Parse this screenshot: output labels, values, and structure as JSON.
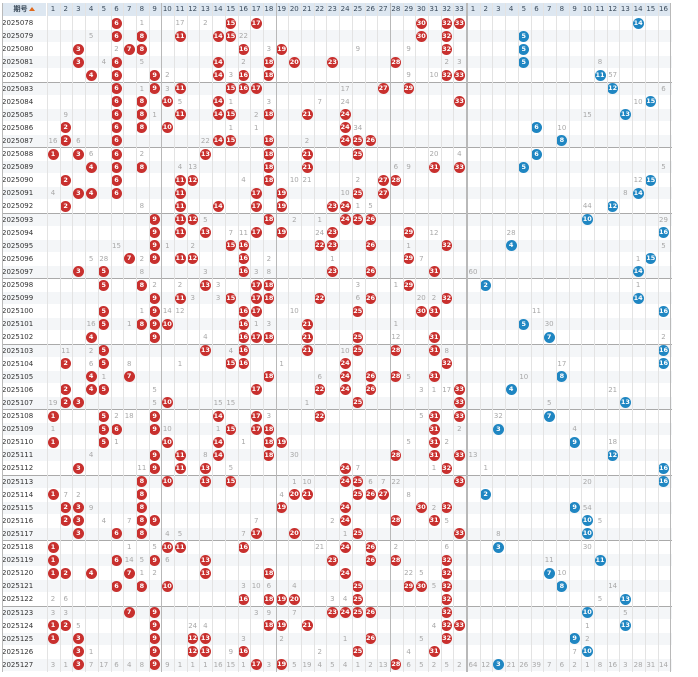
{
  "header": {
    "issue_label": "期号",
    "sort_icon": "sort-icon"
  },
  "red_columns": [
    "1",
    "2",
    "3",
    "4",
    "5",
    "6",
    "7",
    "8",
    "9",
    "10",
    "11",
    "12",
    "13",
    "14",
    "15",
    "16",
    "17",
    "18",
    "19",
    "20",
    "21",
    "22",
    "23",
    "24",
    "25",
    "26",
    "27",
    "28",
    "29",
    "30",
    "31",
    "32",
    "33"
  ],
  "blue_columns": [
    "1",
    "2",
    "3",
    "4",
    "5",
    "6",
    "7",
    "8",
    "9",
    "10",
    "11",
    "12",
    "13",
    "14",
    "15",
    "16"
  ],
  "colors": {
    "red_ball": "#c8302e",
    "blue_ball": "#1f86c2",
    "header_bg": "#dde7f1"
  },
  "rows": [
    {
      "issue": "2025078",
      "red": [
        6,
        15,
        17,
        30,
        32,
        33
      ],
      "blue": 14,
      "miss": {
        "8": "1",
        "11": "17",
        "13": "2"
      }
    },
    {
      "issue": "2025079",
      "red": [
        6,
        8,
        11,
        14,
        15,
        30,
        32
      ],
      "blue": 5,
      "miss": {
        "4": "5",
        "16": "22"
      }
    },
    {
      "issue": "2025080",
      "red": [
        3,
        7,
        8,
        16,
        19,
        32
      ],
      "blue": 5,
      "miss": {
        "6": "2",
        "18": "3",
        "25": "9",
        "29": "9"
      }
    },
    {
      "issue": "2025081",
      "red": [
        3,
        6,
        14,
        18,
        20,
        23,
        28
      ],
      "blue": 5,
      "miss": {
        "5": "4",
        "8": "5",
        "16": "2",
        "32": "2",
        "33": "3"
      },
      "bmiss": {
        "11": "8"
      }
    },
    {
      "issue": "2025082",
      "red": [
        4,
        6,
        9,
        14,
        16,
        18,
        32,
        33
      ],
      "blue": 11,
      "miss": {
        "10": "2",
        "15": "3",
        "29": "9",
        "31": "10"
      },
      "bmiss": {
        "12": "57"
      }
    },
    {
      "issue": "2025083",
      "red": [
        6,
        9,
        11,
        15,
        16,
        17,
        27,
        29
      ],
      "blue": 12,
      "miss": {
        "8": "1",
        "10": "3",
        "24": "17"
      },
      "bmiss": {
        "16": "6"
      },
      "sep": true
    },
    {
      "issue": "2025084",
      "red": [
        6,
        8,
        10,
        14,
        33
      ],
      "blue": 15,
      "miss": {
        "11": "5",
        "15": "1",
        "18": "3",
        "22": "7",
        "24": "24"
      },
      "bmiss": {
        "14": "10"
      }
    },
    {
      "issue": "2025085",
      "red": [
        6,
        8,
        11,
        14,
        15,
        18,
        21,
        24
      ],
      "blue": 13,
      "miss": {
        "2": "9",
        "9": "1",
        "17": "2"
      },
      "bmiss": {
        "10": "15"
      }
    },
    {
      "issue": "2025086",
      "red": [
        2,
        6,
        8,
        10,
        24
      ],
      "blue": 6,
      "miss": {
        "15": "1",
        "17": "1",
        "25": "34"
      },
      "bmiss": {
        "8": "10"
      }
    },
    {
      "issue": "2025087",
      "red": [
        2,
        6,
        14,
        15,
        18,
        24,
        25,
        26
      ],
      "blue": 8,
      "miss": {
        "1": "16",
        "3": "6",
        "13": "22",
        "21": "2"
      }
    },
    {
      "issue": "2025088",
      "red": [
        1,
        3,
        6,
        13,
        18,
        21,
        25
      ],
      "blue": 6,
      "miss": {
        "4": "6",
        "8": "2",
        "31": "20",
        "33": "4"
      },
      "bmiss": {
        "6": "7"
      },
      "sep": true
    },
    {
      "issue": "2025089",
      "red": [
        4,
        6,
        8,
        18,
        21,
        31,
        33
      ],
      "blue": 5,
      "miss": {
        "11": "4",
        "12": "13",
        "28": "6",
        "29": "9"
      },
      "bmiss": {
        "16": "5"
      }
    },
    {
      "issue": "2025090",
      "red": [
        2,
        6,
        11,
        12,
        18,
        27,
        28
      ],
      "blue": 15,
      "miss": {
        "16": "4",
        "20": "10",
        "21": "21",
        "25": "2"
      },
      "bmiss": {
        "14": "12"
      }
    },
    {
      "issue": "2025091",
      "red": [
        3,
        4,
        6,
        11,
        17,
        19,
        25,
        27
      ],
      "blue": 14,
      "miss": {
        "1": "4",
        "24": "10",
        "25": "4"
      },
      "bmiss": {
        "13": "8"
      }
    },
    {
      "issue": "2025092",
      "red": [
        2,
        11,
        14,
        17,
        19,
        23,
        24
      ],
      "blue": 12,
      "miss": {
        "8": "8",
        "25": "1",
        "26": "5"
      },
      "bmiss": {
        "10": "44"
      }
    },
    {
      "issue": "2025093",
      "red": [
        9,
        11,
        12,
        18,
        24,
        25,
        26
      ],
      "blue": 10,
      "miss": {
        "13": "5",
        "20": "2",
        "22": "1"
      },
      "bmiss": {
        "16": "29"
      },
      "sep": true
    },
    {
      "issue": "2025094",
      "red": [
        9,
        11,
        13,
        17,
        19,
        23,
        29
      ],
      "blue": 16,
      "miss": {
        "15": "7",
        "16": "11",
        "22": "24",
        "31": "12"
      },
      "bmiss": {
        "4": "28"
      }
    },
    {
      "issue": "2025095",
      "red": [
        9,
        15,
        16,
        22,
        23,
        26,
        32
      ],
      "blue": 4,
      "miss": {
        "6": "15",
        "10": "1",
        "12": "2",
        "29": "1"
      },
      "bmiss": {
        "16": "5"
      }
    },
    {
      "issue": "2025096",
      "red": [
        7,
        9,
        11,
        12,
        16,
        29
      ],
      "blue": 15,
      "miss": {
        "4": "5",
        "5": "28",
        "8": "2",
        "18": "2",
        "23": "1",
        "30": "7"
      },
      "bmiss": {
        "14": "1"
      }
    },
    {
      "issue": "2025097",
      "red": [
        3,
        5,
        16,
        23,
        26,
        31
      ],
      "blue": 14,
      "miss": {
        "8": "8",
        "13": "3",
        "17": "3",
        "18": "8"
      },
      "bmiss": {
        "1": "60"
      }
    },
    {
      "issue": "2025098",
      "red": [
        5,
        8,
        13,
        17,
        18,
        29
      ],
      "blue": 2,
      "miss": {
        "9": "2",
        "11": "2",
        "14": "3",
        "25": "3",
        "28": "1"
      },
      "bmiss": {
        "14": "1"
      },
      "sep": true
    },
    {
      "issue": "2025099",
      "red": [
        9,
        11,
        15,
        17,
        18,
        22,
        26,
        32
      ],
      "blue": 14,
      "miss": {
        "12": "3",
        "14": "3",
        "25": "6",
        "30": "20",
        "31": "2"
      }
    },
    {
      "issue": "2025100",
      "red": [
        5,
        9,
        16,
        17,
        25,
        30,
        31
      ],
      "blue": 16,
      "miss": {
        "8": "1",
        "10": "14",
        "11": "12",
        "20": "10"
      },
      "bmiss": {
        "6": "11"
      }
    },
    {
      "issue": "2025101",
      "red": [
        5,
        8,
        9,
        10,
        16,
        21
      ],
      "blue": 5,
      "miss": {
        "4": "16",
        "7": "1",
        "17": "1",
        "18": "3",
        "28": "1"
      },
      "bmiss": {
        "7": "30"
      }
    },
    {
      "issue": "2025102",
      "red": [
        4,
        9,
        16,
        17,
        18,
        21,
        25,
        31
      ],
      "blue": 7,
      "miss": {
        "13": "4",
        "28": "12"
      },
      "bmiss": {
        "16": "2"
      }
    },
    {
      "issue": "2025103",
      "red": [
        5,
        13,
        16,
        21,
        25,
        28,
        31
      ],
      "blue": 16,
      "miss": {
        "2": "11",
        "4": "2",
        "15": "4",
        "24": "10",
        "32": "8"
      },
      "sep": true
    },
    {
      "issue": "2025104",
      "red": [
        2,
        5,
        15,
        16,
        24,
        32
      ],
      "blue": 16,
      "miss": {
        "4": "6",
        "7": "8",
        "11": "1",
        "19": "1"
      },
      "bmiss": {
        "8": "17"
      }
    },
    {
      "issue": "2025105",
      "red": [
        4,
        7,
        18,
        24,
        26,
        28,
        31
      ],
      "blue": 8,
      "miss": {
        "5": "1",
        "22": "6",
        "29": "5"
      },
      "bmiss": {
        "5": "10"
      }
    },
    {
      "issue": "2025106",
      "red": [
        2,
        4,
        5,
        17,
        22,
        24,
        26,
        33
      ],
      "blue": 4,
      "miss": {
        "9": "5",
        "30": "3",
        "31": "1",
        "32": "17"
      },
      "bmiss": {
        "12": "21"
      }
    },
    {
      "issue": "2025107",
      "red": [
        2,
        3,
        10,
        25,
        33
      ],
      "blue": 13,
      "miss": {
        "1": "19",
        "9": "5",
        "14": "15",
        "15": "15",
        "21": "1"
      },
      "bmiss": {
        "7": "5"
      }
    },
    {
      "issue": "2025108",
      "red": [
        1,
        5,
        9,
        14,
        17,
        22,
        31,
        33
      ],
      "blue": 7,
      "miss": {
        "6": "2",
        "7": "18",
        "18": "3",
        "30": "5"
      },
      "bmiss": {
        "3": "32"
      },
      "sep": true
    },
    {
      "issue": "2025109",
      "red": [
        5,
        6,
        9,
        15,
        17,
        18,
        31
      ],
      "blue": 3,
      "miss": {
        "1": "1",
        "10": "10",
        "14": "1",
        "33": "2"
      },
      "bmiss": {
        "9": "4"
      }
    },
    {
      "issue": "2025110",
      "red": [
        1,
        5,
        10,
        14,
        18,
        19,
        31
      ],
      "blue": 9,
      "miss": {
        "6": "1",
        "16": "1",
        "29": "5",
        "31": "1",
        "32": "2"
      },
      "bmiss": {
        "12": "18"
      }
    },
    {
      "issue": "2025111",
      "red": [
        9,
        11,
        14,
        18,
        28,
        31,
        33
      ],
      "blue": 12,
      "miss": {
        "4": "4",
        "13": "8",
        "20": "30"
      },
      "bmiss": {
        "1": "13"
      }
    },
    {
      "issue": "2025112",
      "red": [
        3,
        9,
        11,
        13,
        24,
        32
      ],
      "blue": 16,
      "miss": {
        "8": "11",
        "15": "5",
        "25": "7",
        "31": "1"
      },
      "bmiss": {
        "2": "1"
      }
    },
    {
      "issue": "2025113",
      "red": [
        8,
        10,
        13,
        15,
        24,
        25,
        33
      ],
      "blue": 16,
      "miss": {
        "20": "1",
        "21": "10",
        "26": "6",
        "27": "7",
        "28": "22"
      },
      "bmiss": {
        "10": "20"
      },
      "sep": true
    },
    {
      "issue": "2025114",
      "red": [
        1,
        8,
        20,
        21,
        25,
        26,
        27
      ],
      "blue": 2,
      "miss": {
        "2": "7",
        "3": "2",
        "19": "4",
        "29": "8"
      }
    },
    {
      "issue": "2025115",
      "red": [
        2,
        3,
        8,
        19,
        24,
        30,
        32
      ],
      "blue": 9,
      "miss": {
        "4": "9",
        "31": "2"
      },
      "bmiss": {
        "10": "54"
      }
    },
    {
      "issue": "2025116",
      "red": [
        2,
        3,
        8,
        9,
        24,
        28,
        31
      ],
      "blue": 10,
      "miss": {
        "5": "4",
        "7": "7",
        "17": "7",
        "23": "2",
        "32": "5"
      },
      "bmiss": {
        "11": "5"
      }
    },
    {
      "issue": "2025117",
      "red": [
        3,
        6,
        8,
        17,
        20,
        25,
        33
      ],
      "blue": 10,
      "miss": {
        "10": "4",
        "11": "5",
        "16": "7",
        "24": "1"
      },
      "bmiss": {
        "3": "8"
      }
    },
    {
      "issue": "2025118",
      "red": [
        1,
        10,
        11,
        16,
        24,
        26
      ],
      "blue": 3,
      "miss": {
        "7": "1",
        "9": "5",
        "22": "21",
        "28": "2",
        "32": "6"
      },
      "bmiss": {
        "10": "30"
      },
      "sep": true
    },
    {
      "issue": "2025119",
      "red": [
        1,
        6,
        9,
        13,
        23,
        26,
        28,
        32
      ],
      "blue": 11,
      "miss": {
        "7": "14",
        "8": "5",
        "10": "6"
      },
      "bmiss": {
        "7": "11"
      }
    },
    {
      "issue": "2025120",
      "red": [
        1,
        2,
        4,
        7,
        13,
        18,
        24,
        32
      ],
      "blue": 7,
      "miss": {
        "8": "1",
        "9": "2",
        "29": "22",
        "30": "5"
      },
      "bmiss": {
        "8": "10"
      }
    },
    {
      "issue": "2025121",
      "red": [
        6,
        8,
        10,
        25,
        29,
        30,
        32
      ],
      "blue": 8,
      "miss": {
        "16": "3",
        "17": "10",
        "18": "6",
        "20": "4",
        "31": "5"
      },
      "bmiss": {
        "12": "14"
      }
    },
    {
      "issue": "2025122",
      "red": [
        16,
        18,
        19,
        20,
        25,
        32
      ],
      "blue": 13,
      "miss": {
        "1": "2",
        "2": "6",
        "23": "3",
        "24": "4"
      },
      "bmiss": {
        "11": "5"
      }
    },
    {
      "issue": "2025123",
      "red": [
        7,
        9,
        23,
        24,
        25,
        26,
        32
      ],
      "blue": 10,
      "miss": {
        "1": "3",
        "2": "3",
        "17": "3",
        "18": "9",
        "20": "7"
      },
      "bmiss": {
        "13": "5"
      },
      "sep": true
    },
    {
      "issue": "2025124",
      "red": [
        1,
        2,
        9,
        18,
        19,
        21,
        32,
        33
      ],
      "blue": 13,
      "miss": {
        "3": "5",
        "12": "24",
        "13": "4",
        "31": "4"
      },
      "bmiss": {
        "10": "1"
      }
    },
    {
      "issue": "2025125",
      "red": [
        1,
        3,
        9,
        12,
        13,
        26,
        32
      ],
      "blue": 9,
      "miss": {
        "16": "3",
        "19": "2",
        "24": "1",
        "30": "5"
      },
      "bmiss": {
        "10": "2"
      }
    },
    {
      "issue": "2025126",
      "red": [
        3,
        9,
        12,
        13,
        16,
        25,
        31
      ],
      "blue": 10,
      "miss": {
        "4": "1",
        "15": "9",
        "22": "2",
        "29": "4"
      },
      "bmiss": {
        "9": "7"
      }
    },
    {
      "issue": "2025127",
      "red": [
        3,
        9,
        17,
        19,
        28
      ],
      "blue": 3,
      "miss": {
        "1": "3",
        "2": "1",
        "4": "7",
        "5": "17",
        "6": "6",
        "7": "4",
        "8": "8",
        "10": "9",
        "11": "1",
        "12": "1",
        "13": "1",
        "14": "16",
        "15": "15",
        "16": "1",
        "18": "3",
        "20": "5",
        "21": "19",
        "22": "4",
        "23": "5",
        "24": "4",
        "25": "1",
        "26": "2",
        "27": "13",
        "29": "6",
        "30": "5",
        "31": "2",
        "32": "5",
        "33": "2"
      },
      "bmiss": {
        "1": "64",
        "2": "12",
        "4": "21",
        "5": "26",
        "6": "39",
        "7": "7",
        "8": "6",
        "9": "2",
        "10": "1",
        "11": "8",
        "12": "16",
        "13": "3",
        "14": "28",
        "15": "31",
        "16": "14"
      }
    }
  ]
}
